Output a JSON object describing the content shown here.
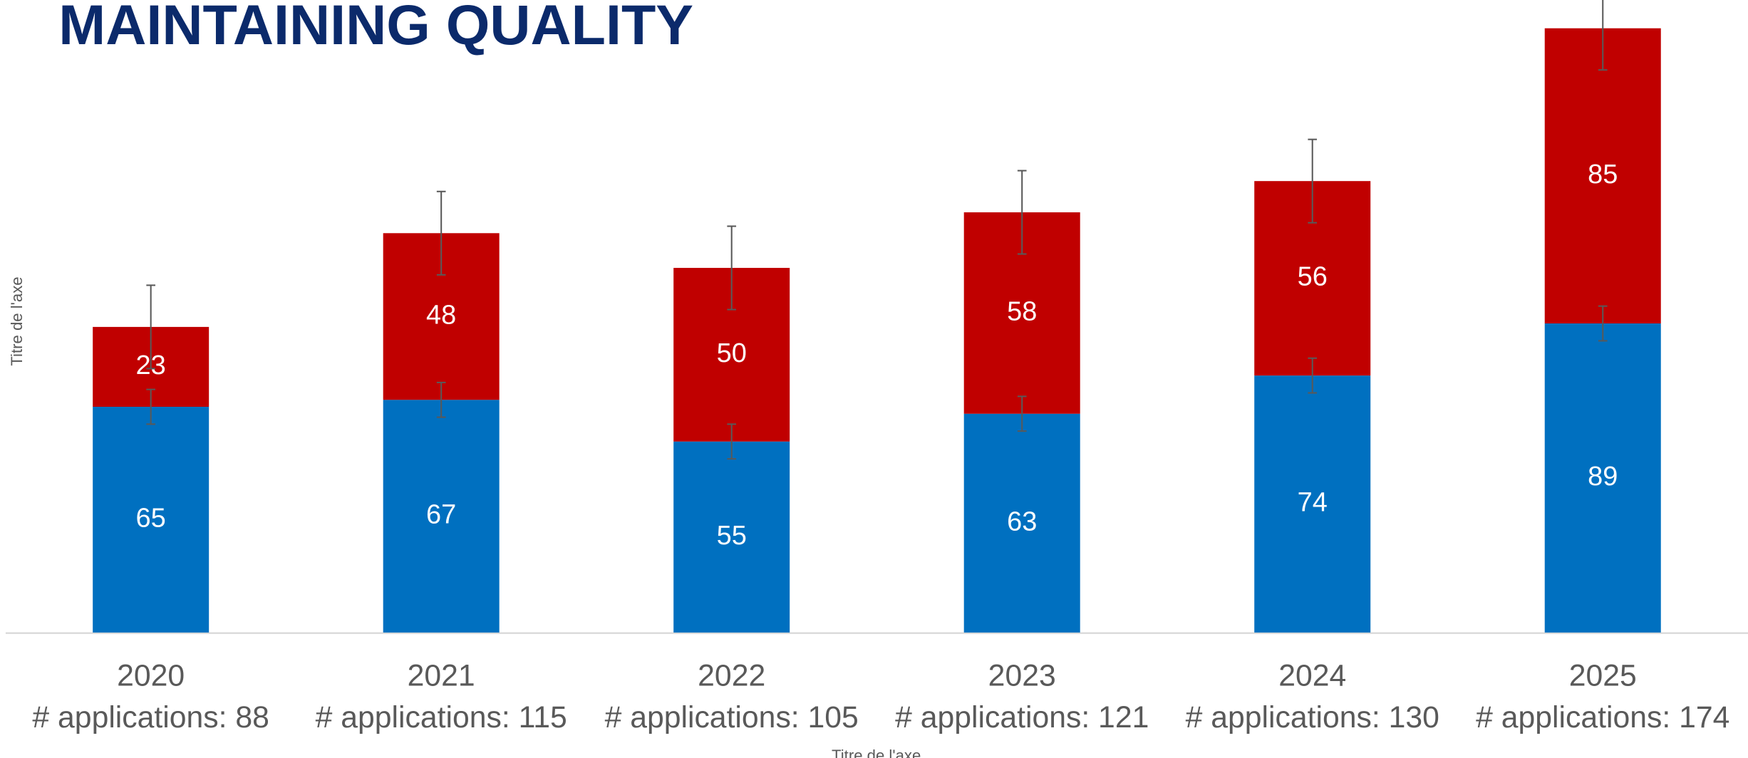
{
  "chart_data": {
    "type": "stacked_bar",
    "title": "MAINTAINING QUALITY",
    "x_label": "Titre de l'axe",
    "y_label": "Titre de l'axe",
    "categories": [
      "2020",
      "2021",
      "2022",
      "2023",
      "2024",
      "2025"
    ],
    "category_sublabels": [
      "# applications: 88",
      "# applications: 115",
      "# applications: 105",
      "# applications: 121",
      "# applications: 130",
      "# applications: 174"
    ],
    "series": [
      {
        "color": "#0070c0",
        "values": [
          65,
          67,
          55,
          63,
          74,
          89
        ],
        "errors": [
          5,
          5,
          5,
          5,
          5,
          5
        ]
      },
      {
        "color": "#c00000",
        "values": [
          23,
          48,
          50,
          58,
          56,
          85
        ],
        "errors": [
          12,
          12,
          12,
          12,
          12,
          12
        ]
      }
    ],
    "ylim": [
      0,
      180
    ]
  }
}
